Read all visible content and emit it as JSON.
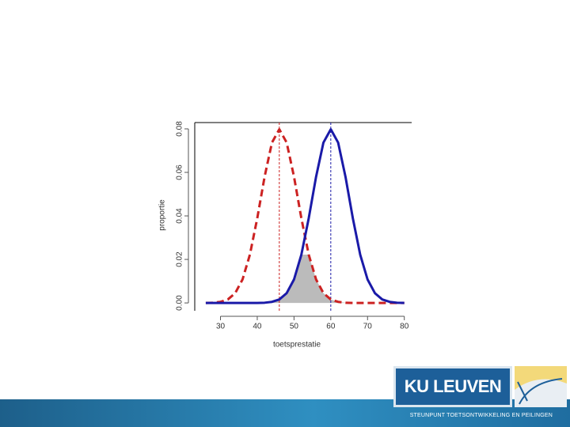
{
  "chart_data": {
    "type": "line",
    "x_label": "toetsprestatie",
    "y_label": "proportie",
    "x": [
      26,
      28,
      30,
      32,
      34,
      36,
      38,
      40,
      42,
      44,
      46,
      48,
      50,
      52,
      54,
      56,
      58,
      60,
      62,
      64,
      66,
      68,
      70,
      72,
      74,
      76,
      78,
      80
    ],
    "series": [
      {
        "color": "#cc2222",
        "dashed": true,
        "values": [
          0.0,
          0.0001,
          0.0005,
          0.0016,
          0.0045,
          0.0108,
          0.0222,
          0.0389,
          0.058,
          0.0737,
          0.0798,
          0.0737,
          0.058,
          0.0389,
          0.0222,
          0.0108,
          0.0045,
          0.0016,
          0.0005,
          0.0001,
          0,
          0,
          0,
          0,
          0,
          0,
          0,
          0
        ]
      },
      {
        "color": "#1a1aa8",
        "dashed": false,
        "values": [
          0,
          0,
          0,
          0,
          0,
          0,
          0.0,
          0.0,
          0.0001,
          0.0005,
          0.0016,
          0.0045,
          0.0108,
          0.0222,
          0.0389,
          0.058,
          0.0737,
          0.0798,
          0.0737,
          0.058,
          0.0389,
          0.0222,
          0.0108,
          0.0045,
          0.0016,
          0.0005,
          0.0001,
          0.0
        ]
      }
    ],
    "reference_lines": [
      {
        "value": 46,
        "color": "#cc2222"
      },
      {
        "value": 60,
        "color": "#1a1aa8"
      }
    ],
    "overlap_color": "#bbbbbb",
    "xlim": [
      23,
      82
    ],
    "ylim": [
      -0.0036,
      0.0829
    ],
    "xticks": [
      30,
      40,
      50,
      60,
      70,
      80
    ],
    "yticks": [
      {
        "value": 0,
        "label": "0.00"
      },
      {
        "value": 0.02,
        "label": "0.02"
      },
      {
        "value": 0.04,
        "label": "0.04"
      },
      {
        "value": 0.06,
        "label": "0.06"
      },
      {
        "value": 0.08,
        "label": "0.08"
      }
    ]
  },
  "footer": {
    "logo": "KU LEUVEN",
    "caption": "STEUNPUNT TOETSONTWIKKELING EN PEILINGEN"
  }
}
